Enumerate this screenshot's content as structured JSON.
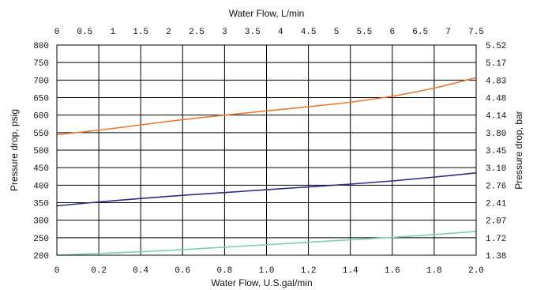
{
  "chart_data": {
    "type": "line",
    "title": "",
    "x_bottom": {
      "label": "Water Flow, U.S.gal/min",
      "range": [
        0,
        2.0
      ],
      "ticks": [
        0,
        0.2,
        0.4,
        0.6,
        0.8,
        1.0,
        1.2,
        1.4,
        1.6,
        1.8,
        2.0
      ],
      "tick_labels": [
        "0",
        "0.2",
        "0.4",
        "0.6",
        "0.8",
        "1.0",
        "1.2",
        "1.4",
        "1.6",
        "1.8",
        "2.0"
      ]
    },
    "x_top": {
      "label": "Water Flow, L/min",
      "range": [
        0,
        7.5
      ],
      "ticks": [
        0,
        0.5,
        1,
        1.5,
        2,
        2.5,
        3,
        3.5,
        4,
        4.5,
        5,
        5.5,
        6,
        6.5,
        7,
        7.5
      ],
      "tick_labels": [
        "0",
        "0.5",
        "1",
        "1.5",
        "2",
        "2.5",
        "3",
        "3.5",
        "4",
        "4.5",
        "5",
        "5.5",
        "6",
        "6.5",
        "7",
        "7.5"
      ]
    },
    "y_left": {
      "label": "Pressure drop, psig",
      "range": [
        200,
        800
      ],
      "ticks": [
        200,
        250,
        300,
        350,
        400,
        450,
        500,
        550,
        600,
        650,
        700,
        750,
        800
      ],
      "tick_labels": [
        "200",
        "250",
        "300",
        "350",
        "400",
        "450",
        "500",
        "550",
        "600",
        "650",
        "700",
        "750",
        "800"
      ]
    },
    "y_right": {
      "label": "Pressure drop, bar",
      "tick_labels": [
        "1.38",
        "1.72",
        "2.07",
        "2.41",
        "2.76",
        "3.10",
        "3.45",
        "3.80",
        "4.14",
        "4.48",
        "4.83",
        "5.17",
        "5.52"
      ]
    },
    "grid": {
      "vertical_at_x": [
        0.2,
        0.4,
        0.6,
        0.8,
        1.0,
        1.2,
        1.4,
        1.6,
        1.8
      ],
      "horizontal_at_y": [
        250,
        300,
        350,
        400,
        450,
        500,
        550,
        600,
        650,
        700,
        750
      ]
    },
    "series": [
      {
        "color": "#e87b35",
        "x": [
          0,
          0.2,
          0.4,
          0.6,
          0.8,
          1.0,
          1.2,
          1.4,
          1.6,
          1.8,
          2.0
        ],
        "y": [
          544,
          557,
          572,
          587,
          600,
          612,
          624,
          637,
          654,
          677,
          707
        ]
      },
      {
        "color": "#2e2e7e",
        "x": [
          0,
          0.2,
          0.4,
          0.6,
          0.8,
          1.0,
          1.2,
          1.4,
          1.6,
          1.8,
          2.0
        ],
        "y": [
          341,
          352,
          362,
          371,
          379,
          387,
          395,
          403,
          412,
          423,
          435
        ]
      },
      {
        "color": "#7fcfb0",
        "x": [
          0,
          0.2,
          0.4,
          0.6,
          0.8,
          1.0,
          1.2,
          1.4,
          1.6,
          1.8,
          2.0
        ],
        "y": [
          200,
          205,
          210,
          216,
          223,
          230,
          237,
          244,
          251,
          259,
          268
        ]
      }
    ]
  }
}
